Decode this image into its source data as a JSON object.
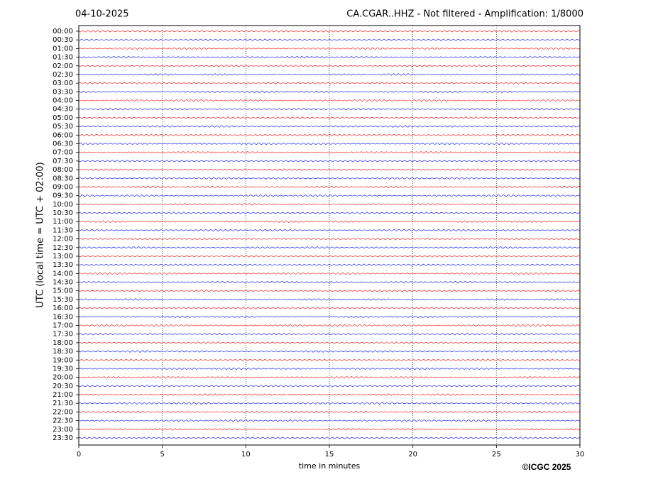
{
  "chart_data": {
    "type": "helicorder",
    "date": "04-10-2025",
    "title": "CA.CGAR..HHZ - Not filtered - Amplification: 1/8000",
    "ylabel": "UTC (local time = UTC + 02:00)",
    "xlabel": "time in minutes",
    "credit": "©ICGC 2025",
    "categories": [
      "00:00",
      "00:30",
      "01:00",
      "01:30",
      "02:00",
      "02:30",
      "03:00",
      "03:30",
      "04:00",
      "04:30",
      "05:00",
      "05:30",
      "06:00",
      "06:30",
      "07:00",
      "07:30",
      "08:00",
      "08:30",
      "09:00",
      "09:30",
      "10:00",
      "10:30",
      "11:00",
      "11:30",
      "12:00",
      "12:30",
      "13:00",
      "13:30",
      "14:00",
      "14:30",
      "15:00",
      "15:30",
      "16:00",
      "16:30",
      "17:00",
      "17:30",
      "18:00",
      "18:30",
      "19:00",
      "19:30",
      "20:00",
      "20:30",
      "21:00",
      "21:30",
      "22:00",
      "22:30",
      "23:00",
      "23:30"
    ],
    "colors": [
      "#ff0000",
      "#0000ff"
    ],
    "xlim": [
      0,
      30
    ],
    "xticks": [
      0,
      5,
      10,
      15,
      20,
      25,
      30
    ],
    "grid": true
  }
}
